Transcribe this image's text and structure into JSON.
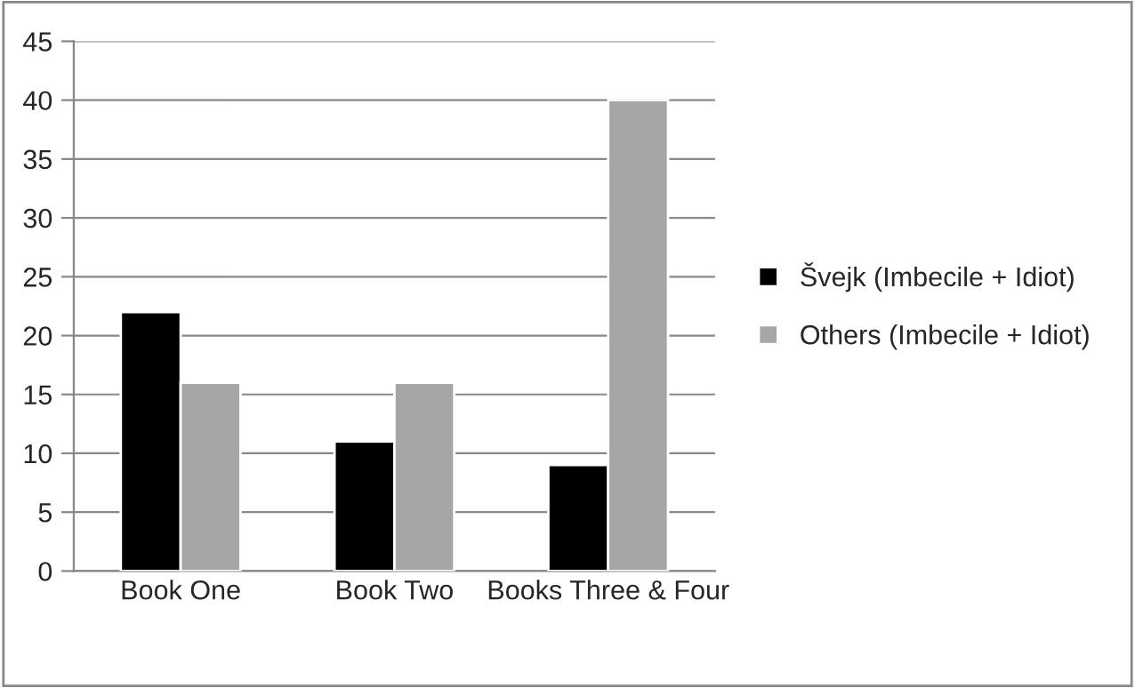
{
  "chart_data": {
    "type": "bar",
    "categories": [
      "Book One",
      "Book Two",
      "Books Three & Four"
    ],
    "series": [
      {
        "name": "Švejk (Imbecile + Idiot)",
        "color": "#000000",
        "values": [
          22,
          11,
          9
        ]
      },
      {
        "name": "Others (Imbecile + Idiot)",
        "color": "#a6a6a6",
        "values": [
          16,
          16,
          40
        ]
      }
    ],
    "ylim": [
      0,
      45
    ],
    "yticks": [
      0,
      5,
      10,
      15,
      20,
      25,
      30,
      35,
      40,
      45
    ],
    "grid": "y",
    "legend": "right"
  }
}
